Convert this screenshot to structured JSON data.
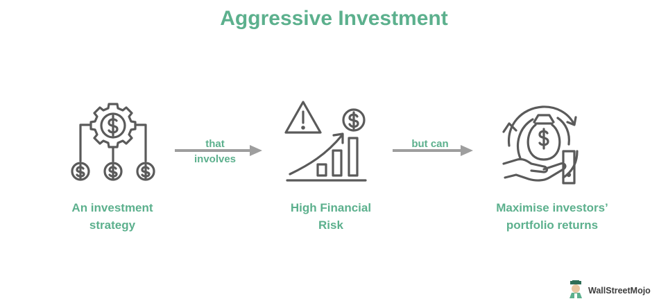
{
  "title": "Aggressive Investment",
  "steps": [
    {
      "icon": "gear-money-network-icon",
      "caption_line1": "An investment",
      "caption_line2": "strategy"
    },
    {
      "icon": "warning-growth-chart-icon",
      "caption_line1": "High Financial",
      "caption_line2": "Risk"
    },
    {
      "icon": "money-bag-cycle-hand-icon",
      "caption_line1": "Maximise investors’",
      "caption_line2": "portfolio returns"
    }
  ],
  "connectors": [
    {
      "line1": "that",
      "line2": "involves"
    },
    {
      "line1": "but can",
      "line2": ""
    }
  ],
  "brand": {
    "name": "WallStreetMojo"
  },
  "colors": {
    "accent": "#5cb08d",
    "icon": "#5a5a5a",
    "arrow": "#9e9e9e"
  }
}
